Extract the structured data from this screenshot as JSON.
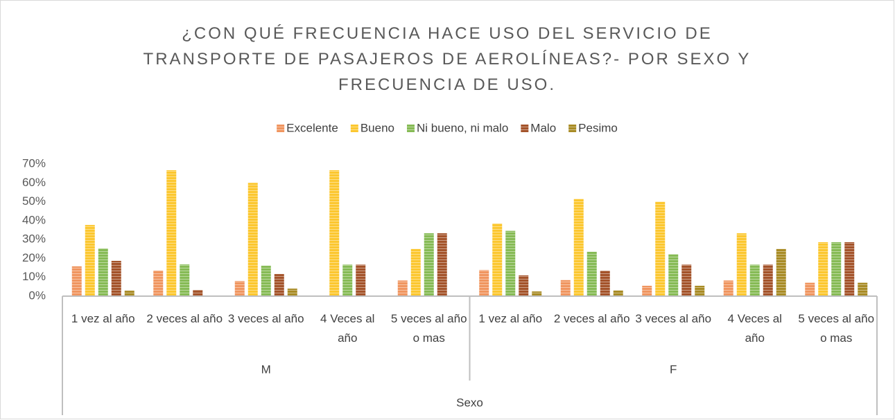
{
  "chart_data": {
    "type": "bar",
    "title": "¿CON QUÉ FRECUENCIA HACE USO DEL SERVICIO DE TRANSPORTE DE PASAJEROS DE AEROLÍNEAS?- POR SEXO Y FRECUENCIA DE USO.",
    "categories": [
      "1 vez al año",
      "2 veces al año",
      "3 veces al año",
      "4 Veces al año",
      "5 veces al año o mas",
      "1 vez al año",
      "2 veces al año",
      "3 veces al año",
      "4 Veces al año",
      "5 veces al año o mas"
    ],
    "groups": [
      "M",
      "F"
    ],
    "x_axis_label": "Sexo",
    "series": [
      {
        "name": "Excelente",
        "color": "#f0955f",
        "values": [
          15.8,
          13.6,
          8,
          0,
          8.3,
          13.8,
          8.5,
          5.5,
          8.3,
          7.1
        ]
      },
      {
        "name": "Bueno",
        "color": "#fcc72f",
        "values": [
          37.7,
          66.7,
          60,
          66.7,
          25,
          38.5,
          51.5,
          50,
          33.3,
          28.6
        ]
      },
      {
        "name": "Ni bueno, ni malo",
        "color": "#86bb55",
        "values": [
          25.3,
          16.8,
          16.1,
          16.7,
          33.3,
          34.6,
          23.5,
          22.2,
          16.7,
          28.6
        ]
      },
      {
        "name": "Malo",
        "color": "#a4532a",
        "values": [
          18.7,
          3.3,
          11.7,
          16.7,
          33.3,
          11,
          13.5,
          16.7,
          16.7,
          28.6
        ]
      },
      {
        "name": "Pesimo",
        "color": "#a88b25",
        "values": [
          2.9,
          0,
          4,
          0,
          0,
          2.5,
          3,
          5.5,
          25,
          7.1
        ]
      }
    ],
    "ylim": [
      0,
      70
    ],
    "yticks": [
      {
        "value": 0,
        "label": "0%"
      },
      {
        "value": 10,
        "label": "10%"
      },
      {
        "value": 20,
        "label": "20%"
      },
      {
        "value": 30,
        "label": "30%"
      },
      {
        "value": 40,
        "label": "40%"
      },
      {
        "value": 50,
        "label": "50%"
      },
      {
        "value": 60,
        "label": "60%"
      },
      {
        "value": 70,
        "label": "70%"
      }
    ],
    "grid": false,
    "legend": "top"
  }
}
